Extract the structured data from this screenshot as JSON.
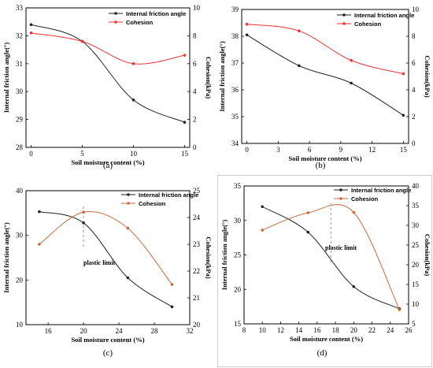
{
  "colors": {
    "friction": "#222222",
    "cohesion_red": "#ee3333",
    "cohesion_orange": "#c86a3c"
  },
  "legend": {
    "friction": "Internal friction angle",
    "cohesion": "Cohesion"
  },
  "chart_data": [
    {
      "type": "line",
      "caption": "(a)",
      "xlabel": "Soil moisture content (%)",
      "ylabel_left": "Internal friction angle(°)",
      "ylabel_right": "Cohesion(kPa)",
      "xlim": [
        -0.5,
        15.5
      ],
      "xticks": [
        0,
        5,
        10,
        15
      ],
      "ylim_left": [
        28,
        33
      ],
      "yticks_left": [
        28,
        29,
        30,
        31,
        32,
        33
      ],
      "ylim_right": [
        0,
        10
      ],
      "yticks_right": [
        0,
        2,
        4,
        6,
        8,
        10
      ],
      "cohesion_color": "red",
      "series": [
        {
          "name": "Internal friction angle",
          "axis": "left",
          "x": [
            0,
            5,
            10,
            15
          ],
          "values": [
            32.4,
            31.8,
            29.7,
            28.9
          ]
        },
        {
          "name": "Cohesion",
          "axis": "right",
          "x": [
            0,
            5,
            10,
            15
          ],
          "values": [
            8.2,
            7.6,
            6.0,
            6.6
          ]
        }
      ]
    },
    {
      "type": "line",
      "caption": "(b)",
      "xlabel": "Soil moisture content (%)",
      "ylabel_left": "Internal friction angle(°)",
      "ylabel_right": "Cohesion(kPa)",
      "xlim": [
        -0.5,
        15.5
      ],
      "xticks": [
        0,
        3,
        6,
        9,
        12,
        15
      ],
      "ylim_left": [
        34,
        39
      ],
      "yticks_left": [
        34,
        35,
        36,
        37,
        38,
        39
      ],
      "ylim_right": [
        0,
        10
      ],
      "yticks_right": [
        0,
        2,
        4,
        6,
        8,
        10
      ],
      "cohesion_color": "red",
      "series": [
        {
          "name": "Internal friction angle",
          "axis": "left",
          "x": [
            0,
            5,
            10,
            15
          ],
          "values": [
            38.05,
            36.9,
            36.25,
            35.05
          ]
        },
        {
          "name": "Cohesion",
          "axis": "right",
          "x": [
            0,
            5,
            10,
            15
          ],
          "values": [
            8.9,
            8.4,
            6.2,
            5.2
          ]
        }
      ]
    },
    {
      "type": "line",
      "caption": "(c)",
      "xlabel": "Soil moisture content (%)",
      "ylabel_left": "Internal friction angle(°)",
      "ylabel_right": "Cohesion(kPa)",
      "xlim": [
        13.5,
        32
      ],
      "xticks": [
        16,
        20,
        24,
        28,
        32
      ],
      "ylim_left": [
        10,
        40
      ],
      "yticks_left": [
        10,
        20,
        30,
        40
      ],
      "ylim_right": [
        20,
        25
      ],
      "yticks_right": [
        20,
        21,
        22,
        23,
        24,
        25
      ],
      "cohesion_color": "orange",
      "annotation": {
        "text": "plastic limit",
        "x": 20
      },
      "series": [
        {
          "name": "Internal friction angle",
          "axis": "left",
          "x": [
            15,
            20,
            25,
            30
          ],
          "values": [
            35.3,
            32.8,
            20.5,
            14.0
          ]
        },
        {
          "name": "Cohesion",
          "axis": "right",
          "x": [
            15,
            20,
            25,
            30
          ],
          "values": [
            23.0,
            24.2,
            23.6,
            21.5
          ]
        }
      ]
    },
    {
      "type": "line",
      "caption": "(d)",
      "xlabel": "Soil moisture content (%)",
      "ylabel_left": "Internal friction angle(°)",
      "ylabel_right": "Cohesion(kPa)",
      "xlim": [
        8,
        26
      ],
      "xticks": [
        8,
        10,
        12,
        14,
        16,
        18,
        20,
        22,
        24,
        26
      ],
      "ylim_left": [
        15,
        35
      ],
      "yticks_left": [
        15,
        20,
        25,
        30,
        35
      ],
      "ylim_right": [
        5,
        40
      ],
      "yticks_right": [
        5,
        10,
        15,
        20,
        25,
        30,
        35,
        40
      ],
      "cohesion_color": "orange",
      "annotation": {
        "text": "plastic limit",
        "x": 17.5
      },
      "series": [
        {
          "name": "Internal friction angle",
          "axis": "left",
          "x": [
            10,
            15,
            20,
            25
          ],
          "values": [
            32.0,
            28.3,
            20.4,
            17.2
          ]
        },
        {
          "name": "Cohesion",
          "axis": "right",
          "x": [
            10,
            15,
            20,
            25
          ],
          "values": [
            28.8,
            33.2,
            33.3,
            8.6
          ]
        }
      ]
    }
  ]
}
